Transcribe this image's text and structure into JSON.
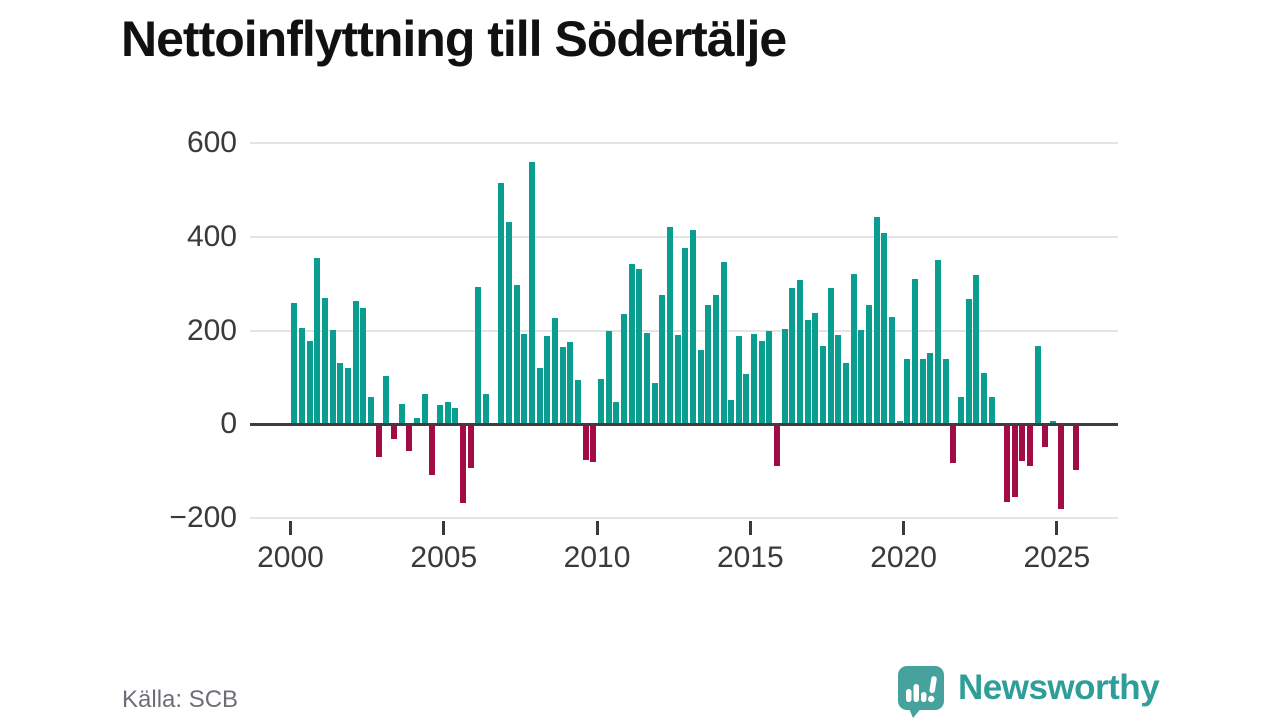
{
  "title": "Nettoinflyttning till Södertälje",
  "source": "Källa: SCB",
  "branding": {
    "logo_text": "Newsworthy",
    "logo_icon": "bar-chart-speech-bubble-icon"
  },
  "colors": {
    "background": "#FFFFFF",
    "title_text": "#111111",
    "positive_bar": "#0A9E91",
    "negative_bar": "#A20C44",
    "gridline": "#E4E4E4",
    "zero_line": "#3E3E3E",
    "axis_text": "#3A3A3A",
    "source_text": "#6E6E78",
    "logo_bubble": "#47A19C",
    "logo_text": "#2E9E98"
  },
  "chart_data": {
    "type": "bar",
    "title": "Nettoinflyttning till Södertälje",
    "x_tick_years": [
      2000,
      2005,
      2010,
      2015,
      2020,
      2025
    ],
    "y_ticks": [
      600,
      400,
      200,
      0,
      -200
    ],
    "ylim": [
      -200,
      600
    ],
    "grid": "horizontal",
    "legend": "none",
    "start_quarter": "2000 Q1",
    "end_quarter": "2025 Q3",
    "series": [
      {
        "year": 2000,
        "values": [
          258,
          205,
          177,
          354
        ]
      },
      {
        "year": 2001,
        "values": [
          270,
          201,
          131,
          120
        ]
      },
      {
        "year": 2002,
        "values": [
          262,
          249,
          58,
          -70
        ]
      },
      {
        "year": 2003,
        "values": [
          102,
          -31,
          43,
          -57
        ]
      },
      {
        "year": 2004,
        "values": [
          14,
          65,
          -108,
          41
        ]
      },
      {
        "year": 2005,
        "values": [
          48,
          34,
          -168,
          -93
        ]
      },
      {
        "year": 2006,
        "values": [
          293,
          64,
          0,
          514
        ]
      },
      {
        "year": 2007,
        "values": [
          431,
          298,
          193,
          559
        ]
      },
      {
        "year": 2008,
        "values": [
          120,
          188,
          227,
          165
        ]
      },
      {
        "year": 2009,
        "values": [
          176,
          94,
          -76,
          -80
        ]
      },
      {
        "year": 2010,
        "values": [
          96,
          200,
          48,
          236
        ]
      },
      {
        "year": 2011,
        "values": [
          342,
          331,
          195,
          89
        ]
      },
      {
        "year": 2012,
        "values": [
          276,
          421,
          190,
          375
        ]
      },
      {
        "year": 2013,
        "values": [
          414,
          158,
          255,
          276
        ]
      },
      {
        "year": 2014,
        "values": [
          346,
          52,
          188,
          108
        ]
      },
      {
        "year": 2015,
        "values": [
          193,
          178,
          200,
          -90
        ]
      },
      {
        "year": 2016,
        "values": [
          203,
          291,
          308,
          223
        ]
      },
      {
        "year": 2017,
        "values": [
          237,
          168,
          291,
          190
        ]
      },
      {
        "year": 2018,
        "values": [
          130,
          320,
          201,
          255
        ]
      },
      {
        "year": 2019,
        "values": [
          443,
          409,
          228,
          6
        ]
      },
      {
        "year": 2020,
        "values": [
          139,
          309,
          139,
          151
        ]
      },
      {
        "year": 2021,
        "values": [
          351,
          139,
          -82,
          58
        ]
      },
      {
        "year": 2022,
        "values": [
          268,
          318,
          109,
          59
        ]
      },
      {
        "year": 2023,
        "values": [
          0,
          -166,
          -156,
          -78
        ]
      },
      {
        "year": 2024,
        "values": [
          -88,
          166,
          -48,
          6
        ]
      },
      {
        "year": 2025,
        "values": [
          -180,
          0,
          -98
        ]
      }
    ]
  }
}
